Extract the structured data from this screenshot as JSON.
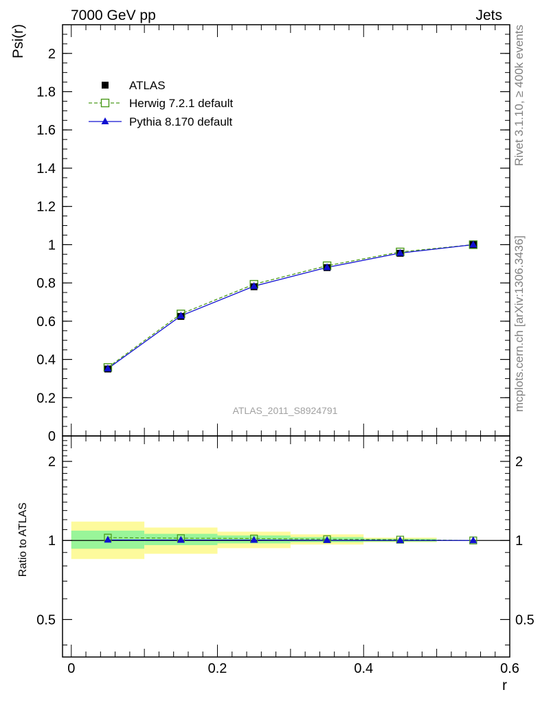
{
  "header": {
    "left": "7000 GeV pp",
    "right": "Jets"
  },
  "side_labels": {
    "top": "Rivet 3.1.10, ≥ 400k events",
    "bottom": "mcplots.cern.ch [arXiv:1306.3436]"
  },
  "watermark": "ATLAS_2011_S8924791",
  "colors": {
    "atlas": "#000000",
    "herwig": "#4a9a1a",
    "pythia": "#1010d0",
    "band_inner": "#99f599",
    "band_outer": "#fdfa9c"
  },
  "chart_data": [
    {
      "type": "line",
      "panel": "main",
      "ylabel": "Psi(r)",
      "xlim": [
        -0.012,
        0.6
      ],
      "ylim": [
        0,
        2.15
      ],
      "y_ticks": [
        "0",
        "0.2",
        "0.4",
        "0.6",
        "0.8",
        "1",
        "1.2",
        "1.4",
        "1.6",
        "1.8",
        "2"
      ],
      "x": [
        0.05,
        0.15,
        0.25,
        0.35,
        0.45,
        0.55
      ],
      "legend_position": "top-left",
      "series": [
        {
          "name": "ATLAS",
          "marker": "filled-square",
          "values": [
            0.35,
            0.625,
            0.78,
            0.88,
            0.955,
            1.0
          ]
        },
        {
          "name": "Herwig 7.2.1 default",
          "marker": "open-square",
          "line": "dashed",
          "values": [
            0.358,
            0.638,
            0.793,
            0.89,
            0.962,
            1.0
          ]
        },
        {
          "name": "Pythia 8.170 default",
          "marker": "filled-triangle",
          "line": "solid",
          "values": [
            0.352,
            0.628,
            0.783,
            0.881,
            0.956,
            1.0
          ]
        }
      ]
    },
    {
      "type": "line",
      "panel": "ratio",
      "ylabel": "Ratio to ATLAS",
      "xlabel": "r",
      "xlim": [
        -0.012,
        0.6
      ],
      "y_scale": "log",
      "ylim": [
        0.36,
        2.5
      ],
      "y_ticks": [
        "0.5",
        "1",
        "2"
      ],
      "x_ticks": [
        "0",
        "0.2",
        "0.4",
        "0.6"
      ],
      "bins": [
        [
          0.0,
          0.1
        ],
        [
          0.1,
          0.2
        ],
        [
          0.2,
          0.3
        ],
        [
          0.3,
          0.4
        ],
        [
          0.4,
          0.5
        ],
        [
          0.5,
          0.6
        ]
      ],
      "band_inner": [
        [
          0.93,
          1.09
        ],
        [
          0.96,
          1.06
        ],
        [
          0.975,
          1.045
        ],
        [
          0.985,
          1.03
        ],
        [
          0.99,
          1.015
        ],
        [
          1.0,
          1.0
        ]
      ],
      "band_outer": [
        [
          0.85,
          1.18
        ],
        [
          0.89,
          1.12
        ],
        [
          0.935,
          1.08
        ],
        [
          0.965,
          1.055
        ],
        [
          0.985,
          1.025
        ],
        [
          1.0,
          1.0
        ]
      ],
      "x": [
        0.05,
        0.15,
        0.25,
        0.35,
        0.45,
        0.55
      ],
      "series": [
        {
          "name": "Herwig 7.2.1 default",
          "values": [
            1.025,
            1.02,
            1.017,
            1.011,
            1.007,
            1.0
          ]
        },
        {
          "name": "Pythia 8.170 default",
          "values": [
            1.005,
            1.004,
            1.004,
            1.002,
            1.001,
            1.0
          ]
        }
      ]
    }
  ]
}
